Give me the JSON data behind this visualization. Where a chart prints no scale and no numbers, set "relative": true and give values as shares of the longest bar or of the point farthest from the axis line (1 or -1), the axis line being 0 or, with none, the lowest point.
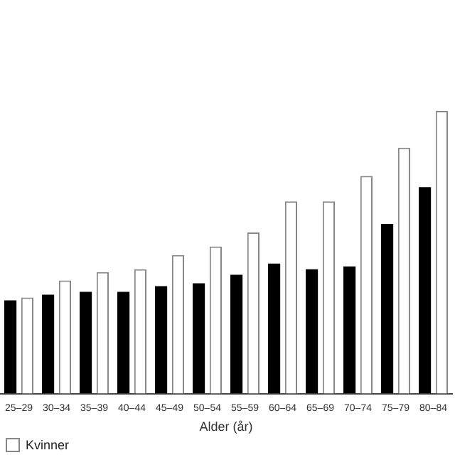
{
  "chart_data": {
    "type": "bar",
    "relative": true,
    "xlabel": "Alder (år)",
    "categories": [
      "25–29",
      "30–34",
      "35–39",
      "40–44",
      "45–49",
      "50–54",
      "55–59",
      "60–64",
      "65–69",
      "70–74",
      "75–79",
      "80–84"
    ],
    "series": [
      {
        "color": "#000000",
        "values": [
          0.33,
          0.35,
          0.36,
          0.36,
          0.38,
          0.39,
          0.42,
          0.46,
          0.44,
          0.45,
          0.6,
          0.73
        ]
      },
      {
        "name": "Kvinner",
        "color": "#ffffff",
        "values": [
          0.34,
          0.4,
          0.43,
          0.44,
          0.49,
          0.52,
          0.57,
          0.68,
          0.68,
          0.77,
          0.87,
          1
        ]
      }
    ],
    "legend": "bottom left",
    "grid": false
  }
}
